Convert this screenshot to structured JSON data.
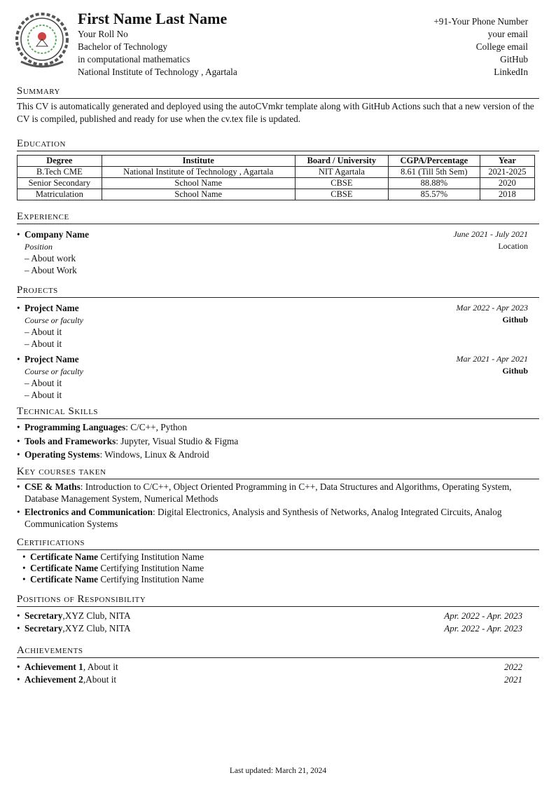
{
  "header": {
    "name": "First Name Last Name",
    "left_lines": [
      "Your Roll No",
      "Bachelor of Technology",
      "in computational mathematics",
      "National Institute of Technology , Agartala"
    ],
    "right_lines": [
      "+91-Your Phone Number",
      "your email",
      "College email",
      "GitHub",
      "LinkedIn"
    ],
    "logo": "nit-agartala-logo"
  },
  "summary": {
    "title": "Summary",
    "text": "This CV is automatically generated and deployed using the autoCVmkr template along with GitHub Actions such that a new version of the CV is compiled, published and ready for use when the cv.tex file is updated."
  },
  "education": {
    "title": "Education",
    "columns": [
      "Degree",
      "Institute",
      "Board / University",
      "CGPA/Percentage",
      "Year"
    ],
    "rows": [
      [
        "B.Tech CME",
        "National Institute of Technology , Agartala",
        "NIT Agartala",
        "8.61 (Till 5th Sem)",
        "2021-2025"
      ],
      [
        "Senior Secondary",
        "School Name",
        "CBSE",
        "88.88%",
        "2020"
      ],
      [
        "Matriculation",
        "School Name",
        "CBSE",
        "85.57%",
        "2018"
      ]
    ]
  },
  "experience": {
    "title": "Experience",
    "items": [
      {
        "company": "Company Name",
        "dates": "June 2021 - July 2021",
        "position": "Position",
        "location": "Location",
        "points": [
          "About work",
          "About Work"
        ]
      }
    ]
  },
  "projects": {
    "title": "Projects",
    "items": [
      {
        "name": "Project Name",
        "dates": "Mar 2022 - Apr 2023",
        "course": "Course or faculty",
        "link": "Github",
        "points": [
          "About it",
          "About it"
        ]
      },
      {
        "name": "Project Name",
        "dates": "Mar 2021 - Apr 2021",
        "course": "Course or faculty",
        "link": "Github",
        "points": [
          "About it",
          "About it"
        ]
      }
    ]
  },
  "skills": {
    "title": "Technical Skills",
    "items": [
      {
        "label": "Programming Languages",
        "value": ": C/C++, Python"
      },
      {
        "label": "Tools and Frameworks",
        "value": ": Jupyter, Visual Studio & Figma"
      },
      {
        "label": "Operating Systems",
        "value": ": Windows, Linux & Android"
      }
    ]
  },
  "courses": {
    "title": "Key courses taken",
    "items": [
      {
        "label": "CSE & Maths",
        "value": ": Introduction to C/C++, Object Oriented Programming in C++, Data Structures and Algorithms, Operating System, Database Management System, Numerical Methods"
      },
      {
        "label": "Electronics and Communication",
        "value": ": Digital Electronics, Analysis and Synthesis of Networks, Analog Integrated Circuits, Analog Communication Systems"
      }
    ]
  },
  "certifications": {
    "title": "Certifications",
    "items": [
      {
        "name": "Certificate Name",
        "institution": " Certifying Institution Name"
      },
      {
        "name": "Certificate Name",
        "institution": " Certifying Institution Name"
      },
      {
        "name": "Certificate Name",
        "institution": " Certifying Institution Name"
      }
    ]
  },
  "positions": {
    "title": "Positions of Responsibility",
    "items": [
      {
        "role": "Secretary",
        "org": ",XYZ Club, NITA",
        "dates": "Apr. 2022 - Apr. 2023"
      },
      {
        "role": "Secretary",
        "org": ",XYZ Club, NITA",
        "dates": "Apr. 2022 - Apr. 2023"
      }
    ]
  },
  "achievements": {
    "title": "Achievements",
    "items": [
      {
        "name": "Achievement 1",
        "text": ", About it",
        "year": "2022"
      },
      {
        "name": "Achievement 2",
        "text": ",About it",
        "year": "2021"
      }
    ]
  },
  "footer": {
    "text": "Last updated: March 21, 2024"
  }
}
